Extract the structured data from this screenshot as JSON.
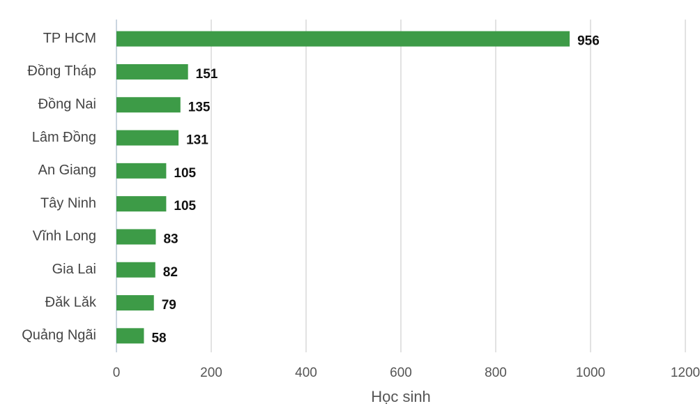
{
  "chart_data": {
    "type": "bar",
    "orientation": "horizontal",
    "categories": [
      "TP HCM",
      "Đồng Tháp",
      "Đồng Nai",
      "Lâm Đồng",
      "An Giang",
      "Tây Ninh",
      "Vĩnh Long",
      "Gia Lai",
      "Đăk Lăk",
      "Quảng Ngãi"
    ],
    "values": [
      956,
      151,
      135,
      131,
      105,
      105,
      83,
      82,
      79,
      58
    ],
    "color": "#3d9b47",
    "xlabel": "Học sinh",
    "xlim": [
      0,
      1200
    ],
    "xticks": [
      0,
      200,
      400,
      600,
      800,
      1000,
      1200
    ],
    "grid": true
  }
}
